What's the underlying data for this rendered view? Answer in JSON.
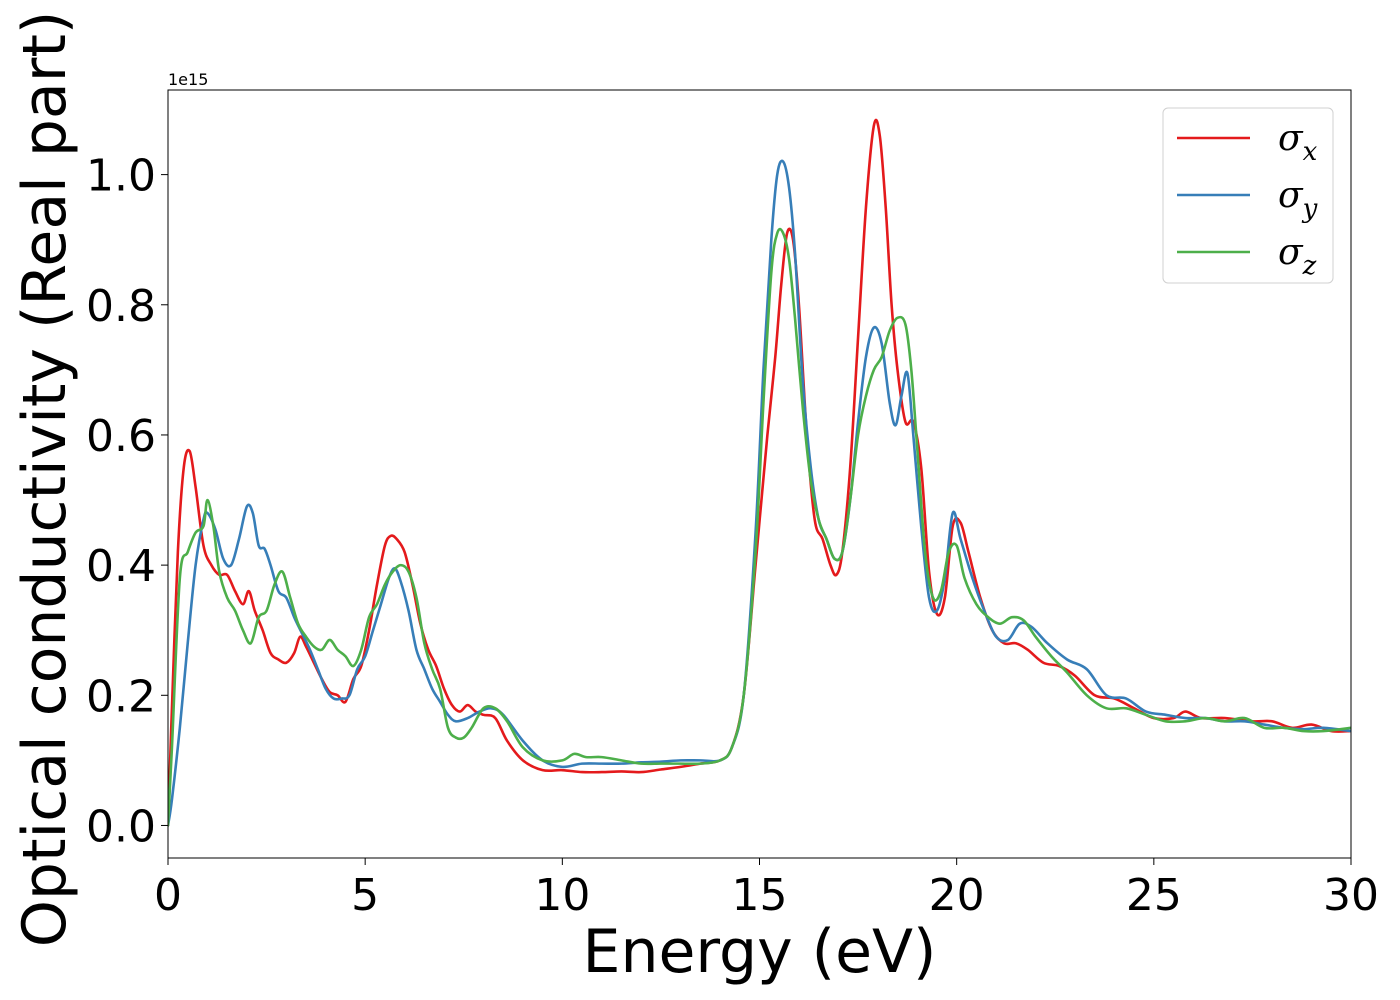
{
  "chart_data": {
    "type": "line",
    "xlabel": "Energy (eV)",
    "ylabel": "Optical conductivity (Real part)",
    "y_offset_label": "1e15",
    "xlim": [
      0,
      30
    ],
    "ylim": [
      -0.05,
      1.13
    ],
    "xticks": [
      0,
      5,
      10,
      15,
      20,
      25,
      30
    ],
    "xtick_labels": [
      "0",
      "5",
      "10",
      "15",
      "20",
      "25",
      "30"
    ],
    "yticks": [
      0.0,
      0.2,
      0.4,
      0.6,
      0.8,
      1.0
    ],
    "ytick_labels": [
      "0.0",
      "0.2",
      "0.4",
      "0.6",
      "0.8",
      "1.0"
    ],
    "grid": false,
    "legend_position": "top-right",
    "series": [
      {
        "name": "σ",
        "subscript": "x",
        "color": "#e41a1c",
        "x": [
          0,
          0.1,
          0.25,
          0.4,
          0.55,
          0.7,
          0.9,
          1.1,
          1.3,
          1.5,
          1.7,
          1.9,
          2.05,
          2.2,
          2.4,
          2.6,
          2.8,
          3.0,
          3.2,
          3.35,
          3.5,
          3.7,
          3.9,
          4.1,
          4.3,
          4.5,
          4.7,
          4.9,
          5.1,
          5.3,
          5.5,
          5.65,
          5.8,
          6.0,
          6.2,
          6.4,
          6.6,
          6.8,
          7.0,
          7.2,
          7.4,
          7.6,
          7.8,
          8.0,
          8.3,
          8.6,
          9.0,
          9.5,
          10.0,
          10.5,
          11.0,
          11.5,
          12.0,
          12.5,
          13.0,
          13.5,
          14.0,
          14.3,
          14.6,
          14.9,
          15.2,
          15.4,
          15.55,
          15.7,
          15.85,
          16.0,
          16.2,
          16.4,
          16.6,
          16.8,
          16.95,
          17.1,
          17.3,
          17.5,
          17.7,
          17.9,
          18.05,
          18.2,
          18.35,
          18.5,
          18.7,
          18.9,
          19.1,
          19.3,
          19.5,
          19.7,
          19.9,
          20.1,
          20.3,
          20.6,
          20.9,
          21.2,
          21.5,
          21.8,
          22.2,
          22.6,
          23.0,
          23.5,
          24.0,
          24.5,
          25.0,
          25.5,
          25.8,
          26.2,
          26.8,
          27.5,
          28.0,
          28.5,
          29.0,
          29.5,
          30.0
        ],
        "values": [
          0.0,
          0.18,
          0.42,
          0.55,
          0.575,
          0.52,
          0.43,
          0.4,
          0.385,
          0.385,
          0.36,
          0.34,
          0.36,
          0.33,
          0.3,
          0.265,
          0.255,
          0.25,
          0.265,
          0.29,
          0.275,
          0.25,
          0.225,
          0.205,
          0.2,
          0.19,
          0.225,
          0.245,
          0.3,
          0.37,
          0.43,
          0.445,
          0.44,
          0.42,
          0.37,
          0.31,
          0.27,
          0.245,
          0.21,
          0.185,
          0.175,
          0.185,
          0.175,
          0.17,
          0.165,
          0.13,
          0.1,
          0.085,
          0.085,
          0.082,
          0.082,
          0.083,
          0.082,
          0.086,
          0.09,
          0.095,
          0.1,
          0.12,
          0.2,
          0.4,
          0.6,
          0.72,
          0.83,
          0.91,
          0.9,
          0.8,
          0.6,
          0.47,
          0.44,
          0.4,
          0.385,
          0.42,
          0.55,
          0.75,
          0.95,
          1.075,
          1.06,
          0.95,
          0.8,
          0.7,
          0.62,
          0.62,
          0.55,
          0.39,
          0.325,
          0.35,
          0.46,
          0.465,
          0.42,
          0.35,
          0.3,
          0.28,
          0.28,
          0.27,
          0.25,
          0.245,
          0.23,
          0.2,
          0.195,
          0.18,
          0.165,
          0.165,
          0.175,
          0.165,
          0.165,
          0.16,
          0.16,
          0.15,
          0.155,
          0.145,
          0.145
        ]
      },
      {
        "name": "σ",
        "subscript": "y",
        "color": "#377eb8",
        "x": [
          0,
          0.1,
          0.3,
          0.5,
          0.7,
          0.9,
          1.0,
          1.2,
          1.4,
          1.6,
          1.8,
          2.0,
          2.15,
          2.3,
          2.45,
          2.6,
          2.8,
          3.0,
          3.2,
          3.4,
          3.6,
          3.8,
          4.0,
          4.2,
          4.4,
          4.6,
          4.8,
          5.0,
          5.2,
          5.4,
          5.6,
          5.75,
          5.9,
          6.1,
          6.3,
          6.5,
          6.7,
          6.9,
          7.1,
          7.3,
          7.6,
          7.9,
          8.2,
          8.5,
          9.0,
          9.5,
          10.0,
          10.5,
          11.0,
          11.5,
          12.0,
          12.5,
          13.0,
          13.5,
          14.0,
          14.3,
          14.6,
          14.9,
          15.1,
          15.3,
          15.45,
          15.6,
          15.75,
          15.9,
          16.1,
          16.3,
          16.5,
          16.7,
          16.9,
          17.1,
          17.3,
          17.5,
          17.7,
          17.9,
          18.1,
          18.3,
          18.45,
          18.6,
          18.75,
          18.9,
          19.1,
          19.3,
          19.5,
          19.7,
          19.9,
          20.1,
          20.4,
          20.7,
          21.0,
          21.3,
          21.6,
          21.9,
          22.3,
          22.8,
          23.3,
          23.8,
          24.3,
          24.8,
          25.3,
          25.8,
          26.3,
          26.8,
          27.3,
          27.8,
          28.3,
          28.8,
          29.3,
          30.0
        ],
        "values": [
          0.0,
          0.04,
          0.15,
          0.28,
          0.4,
          0.47,
          0.48,
          0.455,
          0.41,
          0.4,
          0.44,
          0.49,
          0.48,
          0.43,
          0.425,
          0.4,
          0.36,
          0.35,
          0.32,
          0.295,
          0.27,
          0.24,
          0.21,
          0.195,
          0.195,
          0.2,
          0.24,
          0.26,
          0.3,
          0.34,
          0.38,
          0.395,
          0.375,
          0.33,
          0.27,
          0.24,
          0.21,
          0.19,
          0.17,
          0.16,
          0.165,
          0.175,
          0.18,
          0.17,
          0.13,
          0.1,
          0.09,
          0.095,
          0.095,
          0.095,
          0.097,
          0.098,
          0.1,
          0.1,
          0.1,
          0.12,
          0.2,
          0.45,
          0.7,
          0.9,
          1.0,
          1.02,
          0.98,
          0.88,
          0.68,
          0.55,
          0.47,
          0.44,
          0.41,
          0.42,
          0.5,
          0.62,
          0.72,
          0.765,
          0.74,
          0.65,
          0.615,
          0.66,
          0.695,
          0.6,
          0.46,
          0.35,
          0.33,
          0.38,
          0.48,
          0.44,
          0.38,
          0.33,
          0.29,
          0.285,
          0.31,
          0.305,
          0.28,
          0.255,
          0.24,
          0.2,
          0.195,
          0.175,
          0.17,
          0.165,
          0.165,
          0.16,
          0.16,
          0.155,
          0.15,
          0.148,
          0.15,
          0.145
        ]
      },
      {
        "name": "σ",
        "subscript": "z",
        "color": "#4daf4a",
        "x": [
          0,
          0.1,
          0.3,
          0.5,
          0.7,
          0.9,
          1.0,
          1.15,
          1.3,
          1.5,
          1.7,
          1.9,
          2.1,
          2.3,
          2.5,
          2.7,
          2.9,
          3.1,
          3.3,
          3.5,
          3.7,
          3.9,
          4.1,
          4.3,
          4.5,
          4.7,
          4.9,
          5.1,
          5.3,
          5.5,
          5.7,
          5.9,
          6.1,
          6.3,
          6.5,
          6.7,
          6.9,
          7.1,
          7.3,
          7.5,
          7.7,
          8.0,
          8.3,
          8.6,
          9.0,
          9.5,
          10.0,
          10.3,
          10.6,
          11.0,
          11.5,
          12.0,
          12.5,
          13.0,
          13.5,
          14.0,
          14.3,
          14.6,
          14.9,
          15.1,
          15.3,
          15.45,
          15.6,
          15.75,
          15.9,
          16.1,
          16.3,
          16.5,
          16.7,
          16.9,
          17.1,
          17.3,
          17.5,
          17.7,
          17.9,
          18.1,
          18.3,
          18.5,
          18.7,
          18.85,
          19.0,
          19.2,
          19.4,
          19.6,
          19.8,
          20.0,
          20.2,
          20.5,
          20.8,
          21.1,
          21.4,
          21.7,
          22.0,
          22.4,
          22.8,
          23.3,
          23.8,
          24.3,
          24.8,
          25.3,
          25.8,
          26.3,
          26.8,
          27.3,
          27.8,
          28.3,
          28.8,
          29.3,
          30.0
        ],
        "values": [
          0.0,
          0.12,
          0.38,
          0.42,
          0.45,
          0.46,
          0.5,
          0.46,
          0.39,
          0.35,
          0.33,
          0.3,
          0.28,
          0.32,
          0.33,
          0.37,
          0.39,
          0.35,
          0.31,
          0.29,
          0.275,
          0.27,
          0.285,
          0.27,
          0.26,
          0.245,
          0.27,
          0.32,
          0.34,
          0.37,
          0.39,
          0.4,
          0.39,
          0.35,
          0.28,
          0.24,
          0.21,
          0.15,
          0.135,
          0.135,
          0.15,
          0.18,
          0.18,
          0.16,
          0.12,
          0.1,
          0.1,
          0.11,
          0.105,
          0.105,
          0.1,
          0.095,
          0.095,
          0.095,
          0.095,
          0.1,
          0.12,
          0.2,
          0.42,
          0.65,
          0.85,
          0.91,
          0.91,
          0.87,
          0.78,
          0.64,
          0.53,
          0.47,
          0.44,
          0.41,
          0.42,
          0.5,
          0.6,
          0.66,
          0.7,
          0.72,
          0.76,
          0.78,
          0.77,
          0.7,
          0.58,
          0.42,
          0.35,
          0.36,
          0.42,
          0.43,
          0.38,
          0.34,
          0.32,
          0.31,
          0.32,
          0.315,
          0.29,
          0.26,
          0.235,
          0.2,
          0.18,
          0.18,
          0.17,
          0.16,
          0.16,
          0.165,
          0.16,
          0.165,
          0.15,
          0.15,
          0.145,
          0.145,
          0.15
        ]
      }
    ]
  }
}
